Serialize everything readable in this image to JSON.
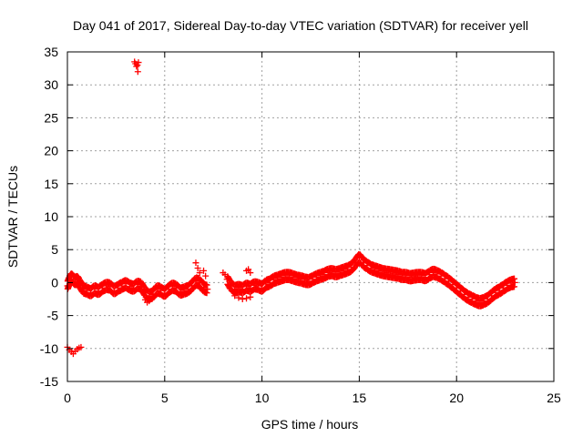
{
  "chart_data": {
    "type": "scatter",
    "title": "Day 041 of 2017, Sidereal Day-to-day VTEC variation (SDTVAR) for receiver yell",
    "xlabel": "GPS time / hours",
    "ylabel": "SDTVAR / TECUs",
    "xlim": [
      0,
      25
    ],
    "ylim": [
      -15,
      35
    ],
    "x_ticks": [
      0,
      5,
      10,
      15,
      20,
      25
    ],
    "y_ticks": [
      -15,
      -10,
      -5,
      0,
      5,
      10,
      15,
      20,
      25,
      30,
      35
    ],
    "grid": true,
    "marker": "+",
    "series": [
      {
        "name": "SDTVAR",
        "color": "#ff0000",
        "segments": [
          {
            "x": [
              0.0,
              0.1,
              0.2,
              0.3,
              0.4,
              0.5,
              0.6,
              0.8,
              1.0,
              1.2,
              1.4,
              1.6,
              1.8,
              2.0,
              2.2,
              2.4,
              2.6,
              2.8,
              3.0,
              3.2,
              3.4,
              3.6,
              3.8,
              4.0,
              4.2,
              4.4,
              4.6,
              4.8,
              5.0,
              5.2,
              5.4,
              5.6,
              5.8,
              6.0,
              6.2,
              6.4,
              6.6,
              6.8,
              7.0,
              7.2
            ],
            "y": [
              -0.5,
              0.3,
              0.8,
              0.5,
              0.2,
              0.4,
              0.0,
              -1.0,
              -1.2,
              -1.5,
              -1.0,
              -1.3,
              -0.8,
              -0.5,
              -0.6,
              -1.2,
              -0.8,
              -0.5,
              -0.2,
              -0.6,
              -0.8,
              -0.3,
              -0.5,
              -1.5,
              -2.0,
              -1.8,
              -1.0,
              -1.2,
              -1.6,
              -1.0,
              -0.6,
              -0.8,
              -1.4,
              -1.2,
              -1.0,
              -0.5,
              0.2,
              0.0,
              -0.8,
              -1.0
            ]
          },
          {
            "x": [
              8.2,
              8.4,
              8.6,
              8.8,
              9.0,
              9.2,
              9.4,
              9.6,
              9.8,
              10.0,
              10.2,
              10.4,
              10.6,
              10.8,
              11.0,
              11.2,
              11.4,
              11.6,
              11.8,
              12.0,
              12.2,
              12.4,
              12.6,
              12.8,
              13.0,
              13.2,
              13.4,
              13.6,
              13.8,
              14.0,
              14.2,
              14.4,
              14.6,
              14.8,
              15.0,
              15.2,
              15.4,
              15.6,
              15.8,
              16.0,
              16.2,
              16.4,
              16.6,
              16.8,
              17.0,
              17.2,
              17.4,
              17.6,
              17.8,
              18.0,
              18.2,
              18.4,
              18.6,
              18.8,
              19.0,
              19.2,
              19.4,
              19.6,
              19.8,
              20.0,
              20.2,
              20.4,
              20.6,
              20.8,
              21.0,
              21.2,
              21.4,
              21.6,
              21.8,
              22.0,
              22.2,
              22.4,
              22.6,
              22.8,
              23.0
            ],
            "y": [
              0.5,
              -0.5,
              -1.0,
              -0.8,
              -1.0,
              -0.6,
              -0.8,
              -0.4,
              -0.5,
              -0.8,
              -0.2,
              0.0,
              0.4,
              0.6,
              0.8,
              1.0,
              1.0,
              0.8,
              0.6,
              0.5,
              0.3,
              0.2,
              0.5,
              0.8,
              1.0,
              1.2,
              1.5,
              1.6,
              1.4,
              1.6,
              1.8,
              2.0,
              2.3,
              3.0,
              3.8,
              3.0,
              2.6,
              2.2,
              2.0,
              1.8,
              1.6,
              1.5,
              1.4,
              1.3,
              1.2,
              1.0,
              1.0,
              0.8,
              0.9,
              1.0,
              1.0,
              0.8,
              1.2,
              1.5,
              1.3,
              1.0,
              0.6,
              0.2,
              -0.3,
              -0.8,
              -1.3,
              -1.8,
              -2.2,
              -2.5,
              -2.8,
              -3.0,
              -2.8,
              -2.5,
              -2.0,
              -1.5,
              -1.2,
              -0.8,
              -0.4,
              -0.1,
              0.0
            ]
          }
        ],
        "clusters": [
          {
            "x": [
              3.45,
              3.5,
              3.55,
              3.6,
              3.62,
              3.65
            ],
            "y": [
              33.5,
              33.2,
              32.8,
              33.0,
              32.0,
              33.4
            ]
          },
          {
            "x": [
              0.0,
              0.1,
              0.2,
              0.3,
              0.4,
              0.5,
              0.6,
              0.7
            ],
            "y": [
              -9.8,
              -10.2,
              -10.5,
              -10.8,
              -10.4,
              -10.1,
              -9.9,
              -9.8
            ]
          },
          {
            "x": [
              6.6,
              6.7,
              6.8,
              7.0,
              7.1
            ],
            "y": [
              3.0,
              2.2,
              1.5,
              1.8,
              1.0
            ]
          },
          {
            "x": [
              8.0,
              8.1,
              9.2,
              9.3,
              9.4
            ],
            "y": [
              1.5,
              1.2,
              1.8,
              2.0,
              1.5
            ]
          },
          {
            "x": [
              8.6,
              8.8,
              9.0,
              9.2,
              9.4
            ],
            "y": [
              -2.0,
              -2.3,
              -2.5,
              -2.4,
              -2.2
            ]
          },
          {
            "x": [
              4.0,
              4.1,
              4.2
            ],
            "y": [
              -2.6,
              -3.0,
              -2.8
            ]
          }
        ]
      }
    ]
  }
}
